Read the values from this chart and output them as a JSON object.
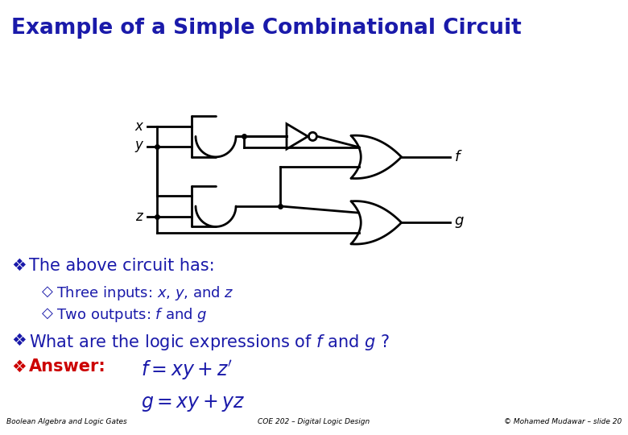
{
  "title": "Example of a Simple Combinational Circuit",
  "title_color": "#1a1aaa",
  "title_bg": "#c8c8ff",
  "footer_bg": "#ffffcc",
  "footer_left": "Boolean Algebra and Logic Gates",
  "footer_center": "COE 202 – Digital Logic Design",
  "footer_right": "© Mohamed Mudawar – slide 20",
  "body_bg": "#ffffff",
  "bullet": "❖",
  "sub_bullet": "◇",
  "answer_color": "#cc0000",
  "circuit_color": "#000000",
  "lw": 2.0
}
